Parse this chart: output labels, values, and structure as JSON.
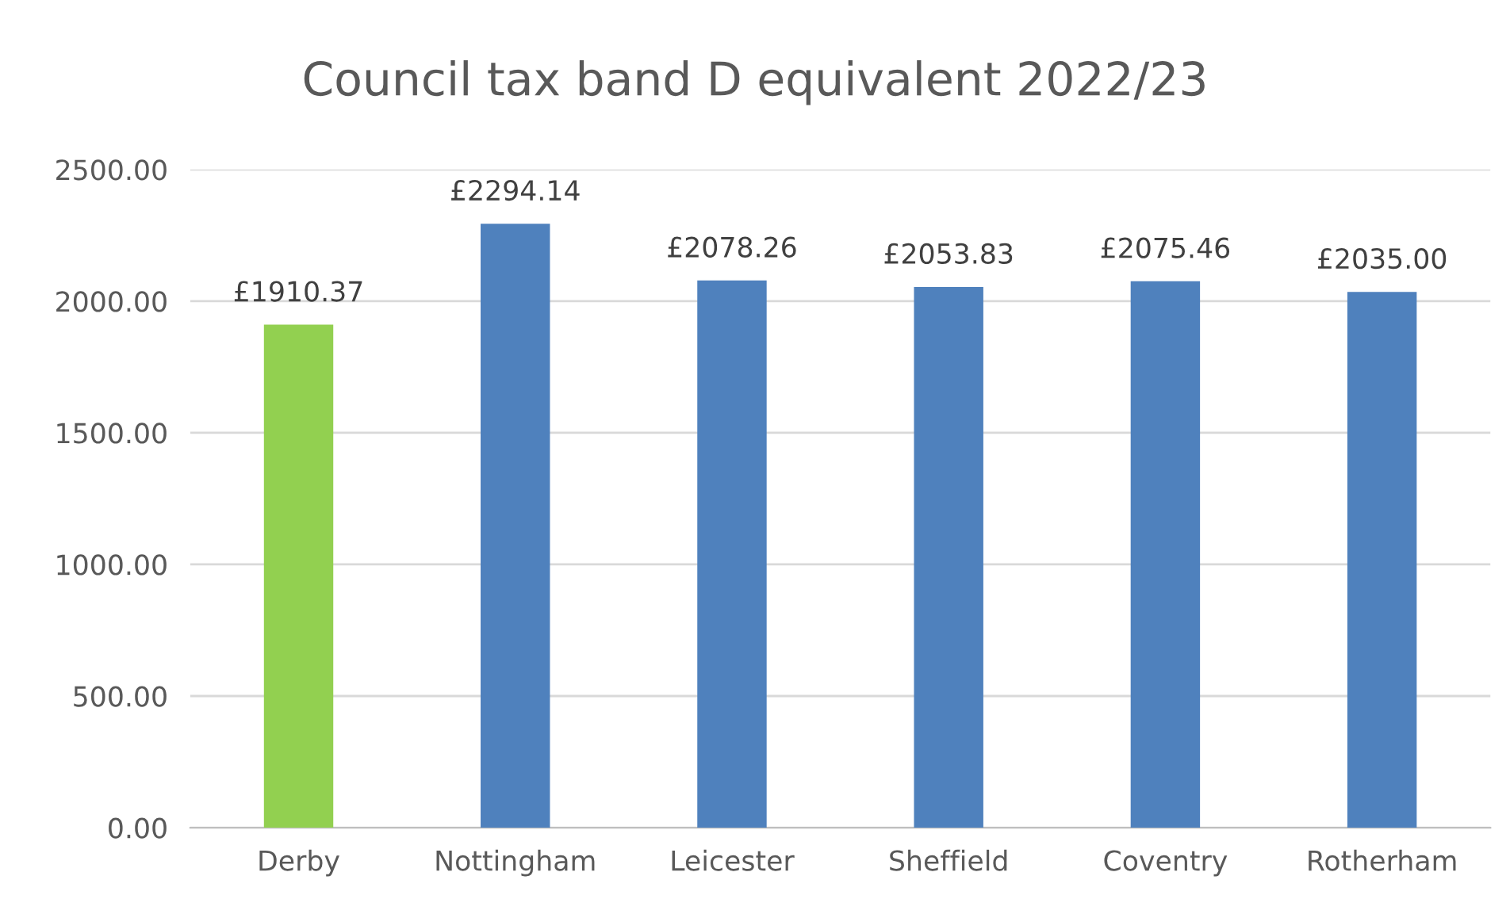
{
  "chart_data": {
    "type": "bar",
    "title": "Council tax band D equivalent 2022/23",
    "categories": [
      "Derby",
      "Nottingham",
      "Leicester",
      "Sheffield",
      "Coventry",
      "Rotherham"
    ],
    "values": [
      1910.37,
      2294.14,
      2078.26,
      2053.83,
      2075.46,
      2035.0
    ],
    "colors": [
      "#92d050",
      "#4f81bd",
      "#4f81bd",
      "#4f81bd",
      "#4f81bd",
      "#4f81bd"
    ],
    "value_labels": [
      "£1910.37",
      "£2294.14",
      "£2078.26",
      "£2053.83",
      "£2075.46",
      "£2035.00"
    ],
    "ylim": [
      0,
      2500
    ],
    "yticks": [
      {
        "value": 0,
        "label": "0.00"
      },
      {
        "value": 500,
        "label": "500.00"
      },
      {
        "value": 1000,
        "label": "1000.00"
      },
      {
        "value": 1500,
        "label": "1500.00"
      },
      {
        "value": 2000,
        "label": "2000.00"
      },
      {
        "value": 2500,
        "label": "2500.00"
      }
    ],
    "grid": "y"
  }
}
